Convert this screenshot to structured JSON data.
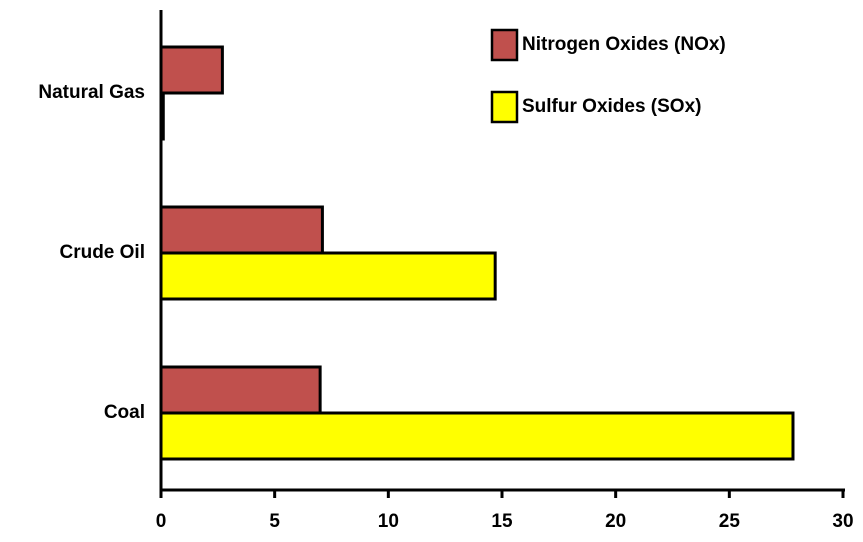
{
  "chart_data": {
    "type": "bar",
    "orientation": "horizontal",
    "categories": [
      "Natural Gas",
      "Crude Oil",
      "Coal"
    ],
    "series": [
      {
        "name": "Nitrogen Oxides (NOx)",
        "color": "#c0504d",
        "values": [
          2.7,
          7.1,
          7.0
        ]
      },
      {
        "name": "Sulfur Oxides (SOx)",
        "color": "#ffff00",
        "values": [
          0.1,
          14.7,
          27.8
        ]
      }
    ],
    "xlim": [
      0,
      30
    ],
    "xticks": [
      0,
      5,
      10,
      15,
      20,
      25,
      30
    ],
    "legend": "upper right"
  }
}
